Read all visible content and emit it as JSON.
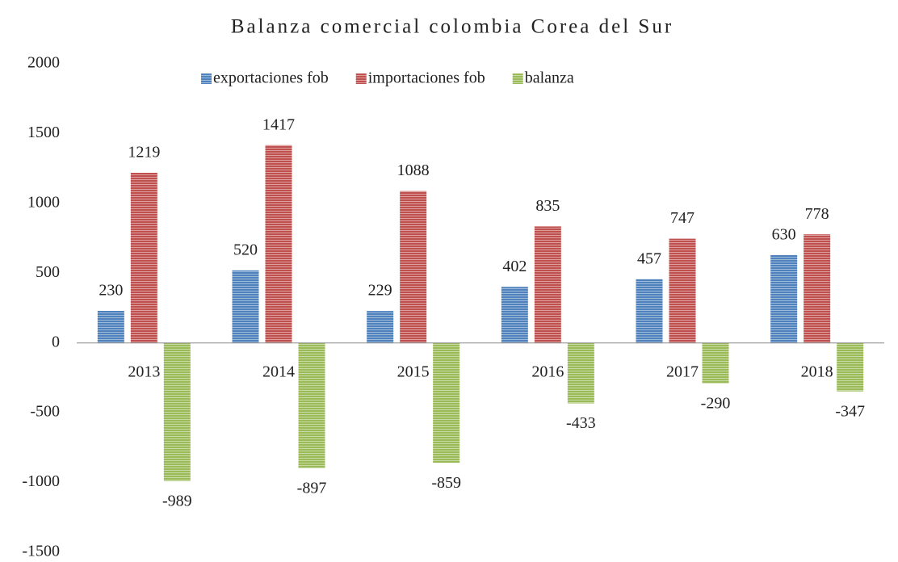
{
  "chart_data": {
    "type": "bar",
    "title": "Balanza comercial colombia Corea del Sur",
    "categories": [
      "2013",
      "2014",
      "2015",
      "2016",
      "2017",
      "2018"
    ],
    "series": [
      {
        "name": "exportaciones fob",
        "color": "#4f81bd",
        "values": [
          230,
          520,
          229,
          402,
          457,
          630
        ]
      },
      {
        "name": "importaciones fob",
        "color": "#c0504d",
        "values": [
          1219,
          1417,
          1088,
          835,
          747,
          778
        ]
      },
      {
        "name": "balanza",
        "color": "#9bbb59",
        "values": [
          -989,
          -897,
          -859,
          -433,
          -290,
          -347
        ]
      }
    ],
    "ylim": [
      -1500,
      2000
    ],
    "yticks": [
      -1500,
      -1000,
      -500,
      0,
      500,
      1000,
      1500,
      2000
    ],
    "grid": false,
    "legend": "top"
  }
}
